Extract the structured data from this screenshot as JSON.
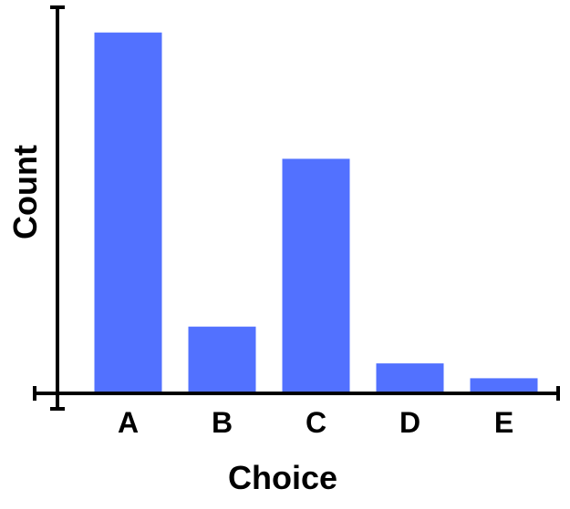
{
  "chart_data": {
    "type": "bar",
    "xlabel": "Choice",
    "ylabel": "Count",
    "categories": [
      "A",
      "B",
      "C",
      "D",
      "E"
    ],
    "values": [
      100,
      18.5,
      65,
      8.3,
      4.2
    ],
    "ylim": [
      0,
      107
    ],
    "y_tick_labels": "none",
    "grid": false,
    "legend": "none",
    "bar_color": "#5271ff",
    "axis_color": "#000000"
  }
}
